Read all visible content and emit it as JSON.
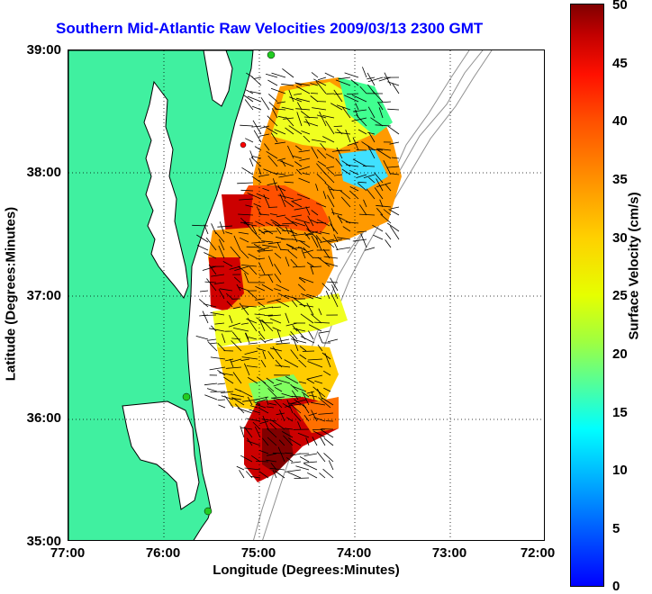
{
  "title": "Southern Mid-Atlantic Raw Velocities 2009/03/13 2300 GMT",
  "xlabel": "Longitude (Degrees:Minutes)",
  "ylabel": "Latitude (Degrees:Minutes)",
  "colorbar": {
    "label": "Surface Velocity (cm/s)",
    "ticks": [
      "50",
      "45",
      "40",
      "35",
      "30",
      "25",
      "20",
      "15",
      "10",
      "5",
      "0"
    ],
    "range": [
      0,
      50
    ]
  },
  "y_ticks": [
    "39:00",
    "38:00",
    "37:00",
    "36:00",
    "35:00"
  ],
  "x_ticks": [
    "77:00",
    "76:00",
    "75:00",
    "74:00",
    "73:00",
    "72:00"
  ],
  "colors": {
    "land": "#40f0a0",
    "coast": "#000000",
    "title": "#0000ff",
    "station_green": "#22cc22",
    "station_red": "#ff0000",
    "bathymetry": "#909090"
  },
  "map": {
    "lon_range": [
      -77,
      -72
    ],
    "lat_range": [
      35,
      39
    ],
    "grid": "dotted"
  }
}
